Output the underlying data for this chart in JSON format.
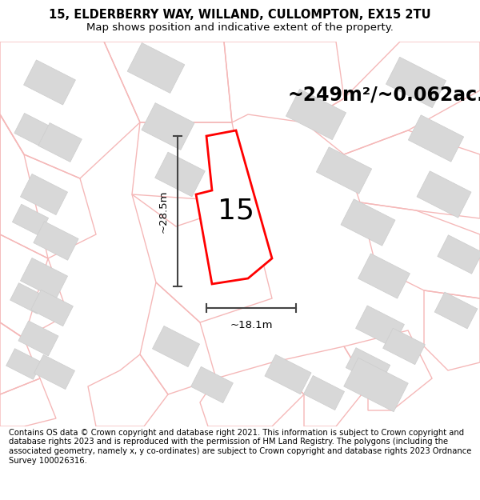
{
  "title_line1": "15, ELDERBERRY WAY, WILLAND, CULLOMPTON, EX15 2TU",
  "title_line2": "Map shows position and indicative extent of the property.",
  "area_text": "~249m²/~0.062ac.",
  "plot_number": "15",
  "dim_vertical": "~28.5m",
  "dim_horizontal": "~18.1m",
  "footer_text": "Contains OS data © Crown copyright and database right 2021. This information is subject to Crown copyright and database rights 2023 and is reproduced with the permission of HM Land Registry. The polygons (including the associated geometry, namely x, y co-ordinates) are subject to Crown copyright and database rights 2023 Ordnance Survey 100026316.",
  "bg_color": "#ffffff",
  "map_bg_color": "#ffffff",
  "road_outline_color": "#f5b8b8",
  "road_fill_color": "#fce8e8",
  "building_fill": "#d8d8d8",
  "building_edge": "#cccccc",
  "property_fill": "#ffffff",
  "property_edge": "#ff0000",
  "dim_color": "#444444",
  "title_fontsize": 10.5,
  "subtitle_fontsize": 9.5,
  "area_fontsize": 17,
  "number_fontsize": 26,
  "dim_fontsize": 9.5,
  "footer_fontsize": 7.2
}
